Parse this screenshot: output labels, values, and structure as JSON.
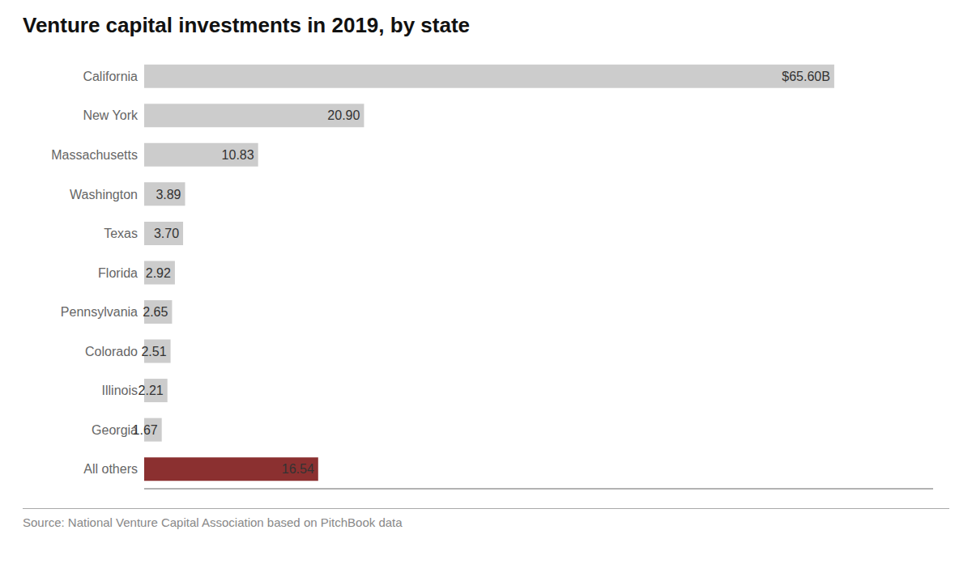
{
  "chart_data": {
    "type": "bar",
    "orientation": "horizontal",
    "title": "Venture capital investments in 2019, by state",
    "categories": [
      "California",
      "New York",
      "Massachusetts",
      "Washington",
      "Texas",
      "Florida",
      "Pennsylvania",
      "Colorado",
      "Illinois",
      "Georgia",
      "All others"
    ],
    "values": [
      65.6,
      20.9,
      10.83,
      3.89,
      3.7,
      2.92,
      2.65,
      2.51,
      2.21,
      1.67,
      16.54
    ],
    "value_labels": [
      "$65.60B",
      "20.90",
      "10.83",
      "3.89",
      "3.70",
      "2.92",
      "2.65",
      "2.51",
      "2.21",
      "1.67",
      "16.54"
    ],
    "data_labels": true,
    "colors": [
      "#cccccc",
      "#cccccc",
      "#cccccc",
      "#cccccc",
      "#cccccc",
      "#cccccc",
      "#cccccc",
      "#cccccc",
      "#cccccc",
      "#cccccc",
      "#8b3030"
    ],
    "xlim": [
      0,
      75
    ],
    "tick_labels": "y",
    "grid": false,
    "source": "Source: National Venture Capital Association based on PitchBook data"
  }
}
